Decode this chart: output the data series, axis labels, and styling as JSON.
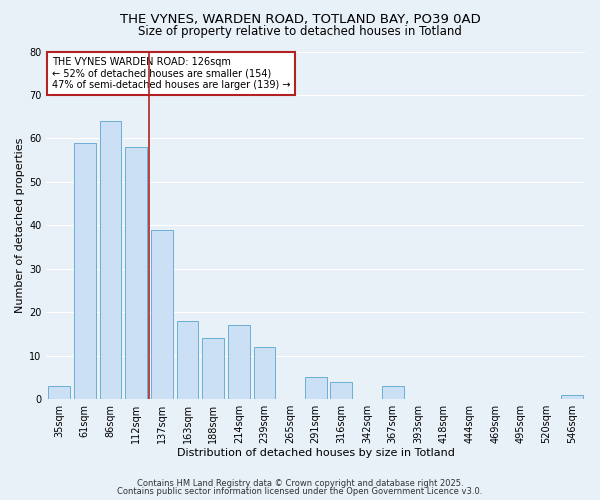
{
  "title1": "THE VYNES, WARDEN ROAD, TOTLAND BAY, PO39 0AD",
  "title2": "Size of property relative to detached houses in Totland",
  "xlabel": "Distribution of detached houses by size in Totland",
  "ylabel": "Number of detached properties",
  "bar_labels": [
    "35sqm",
    "61sqm",
    "86sqm",
    "112sqm",
    "137sqm",
    "163sqm",
    "188sqm",
    "214sqm",
    "239sqm",
    "265sqm",
    "291sqm",
    "316sqm",
    "342sqm",
    "367sqm",
    "393sqm",
    "418sqm",
    "444sqm",
    "469sqm",
    "495sqm",
    "520sqm",
    "546sqm"
  ],
  "bar_values": [
    3,
    59,
    64,
    58,
    39,
    18,
    14,
    17,
    12,
    0,
    5,
    4,
    0,
    3,
    0,
    0,
    0,
    0,
    0,
    0,
    1
  ],
  "bar_color": "#cce0f5",
  "bar_edge_color": "#6baed6",
  "highlight_bar_index": 3,
  "highlight_edge_color": "#b22222",
  "ylim": [
    0,
    80
  ],
  "yticks": [
    0,
    10,
    20,
    30,
    40,
    50,
    60,
    70,
    80
  ],
  "annotation_line1": "THE VYNES WARDEN ROAD: 126sqm",
  "annotation_line2": "← 52% of detached houses are smaller (154)",
  "annotation_line3": "47% of semi-detached houses are larger (139) →",
  "annotation_box_edge": "#b22222",
  "footer1": "Contains HM Land Registry data © Crown copyright and database right 2025.",
  "footer2": "Contains public sector information licensed under the Open Government Licence v3.0.",
  "bg_color": "#e8f0f8",
  "plot_bg_color": "#e8f0f8",
  "grid_color": "#ffffff",
  "title_fontsize": 9.5,
  "subtitle_fontsize": 8.5,
  "annotation_fontsize": 7,
  "footer_fontsize": 6,
  "axis_label_fontsize": 8,
  "tick_fontsize": 7
}
